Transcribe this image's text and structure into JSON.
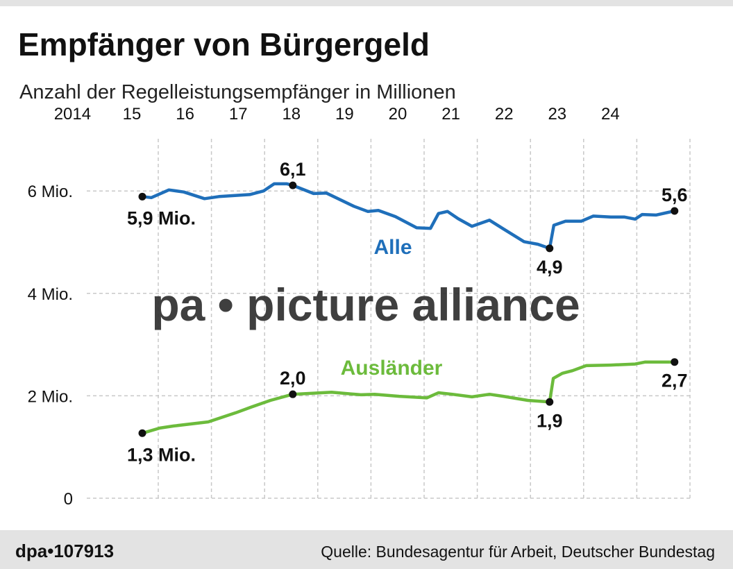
{
  "chart_data": {
    "type": "line",
    "title": "Empfänger von Bürgergeld",
    "subtitle": "Anzahl der Regelleistungsempfänger in Millionen",
    "xlabel": "",
    "ylabel": "",
    "x_tick_labels": [
      "2014",
      "15",
      "16",
      "17",
      "18",
      "19",
      "20",
      "21",
      "22",
      "23",
      "24"
    ],
    "y_tick_labels": [
      "0",
      "2 Mio.",
      "4 Mio.",
      "6 Mio."
    ],
    "y_ticks": [
      0,
      2,
      4,
      6
    ],
    "ylim": [
      0,
      6.6
    ],
    "xlim": [
      2014,
      2025
    ],
    "grid": true,
    "series": [
      {
        "name": "Alle",
        "color": "#1f6fba",
        "x": [
          2014.7,
          2014.87,
          2015.2,
          2015.48,
          2015.87,
          2016.14,
          2016.72,
          2016.98,
          2017.18,
          2017.42,
          2017.53,
          2017.92,
          2018.16,
          2018.68,
          2018.94,
          2019.14,
          2019.46,
          2019.86,
          2020.12,
          2020.27,
          2020.44,
          2020.64,
          2020.9,
          2021.23,
          2021.49,
          2021.88,
          2022.14,
          2022.36,
          2022.44,
          2022.66,
          2022.96,
          2023.18,
          2023.51,
          2023.77,
          2023.97,
          2024.1,
          2024.36,
          2024.71
        ],
        "values": [
          5.89,
          5.87,
          6.02,
          5.98,
          5.85,
          5.89,
          5.93,
          6.0,
          6.14,
          6.14,
          6.11,
          5.95,
          5.96,
          5.7,
          5.6,
          5.62,
          5.5,
          5.28,
          5.27,
          5.56,
          5.6,
          5.46,
          5.31,
          5.43,
          5.26,
          5.01,
          4.96,
          4.88,
          5.33,
          5.41,
          5.41,
          5.51,
          5.49,
          5.49,
          5.45,
          5.54,
          5.53,
          5.61
        ]
      },
      {
        "name": "Ausländer",
        "color": "#6cbb3c",
        "x": [
          2014.7,
          2015.03,
          2015.29,
          2015.94,
          2016.46,
          2016.75,
          2017.11,
          2017.53,
          2017.9,
          2018.26,
          2018.81,
          2019.07,
          2019.53,
          2020.05,
          2020.27,
          2020.53,
          2020.9,
          2021.23,
          2021.49,
          2021.95,
          2022.36,
          2022.43,
          2022.6,
          2022.79,
          2023.05,
          2023.51,
          2023.97,
          2024.16,
          2024.71
        ],
        "values": [
          1.27,
          1.37,
          1.41,
          1.49,
          1.67,
          1.78,
          1.91,
          2.03,
          2.05,
          2.07,
          2.02,
          2.03,
          1.99,
          1.96,
          2.06,
          2.03,
          1.98,
          2.03,
          1.99,
          1.91,
          1.88,
          2.34,
          2.44,
          2.49,
          2.59,
          2.6,
          2.62,
          2.66,
          2.66
        ]
      }
    ],
    "annotations": [
      {
        "text": "5,9 Mio.",
        "x": 2014.7,
        "y": 5.89,
        "pos": "below"
      },
      {
        "text": "6,1",
        "x": 2017.53,
        "y": 6.11,
        "pos": "above"
      },
      {
        "text": "4,9",
        "x": 2022.36,
        "y": 4.88,
        "pos": "below"
      },
      {
        "text": "5,6",
        "x": 2024.71,
        "y": 5.61,
        "pos": "above"
      },
      {
        "text": "1,3 Mio.",
        "x": 2014.7,
        "y": 1.27,
        "pos": "below"
      },
      {
        "text": "2,0",
        "x": 2017.53,
        "y": 2.03,
        "pos": "above"
      },
      {
        "text": "1,9",
        "x": 2022.36,
        "y": 1.88,
        "pos": "below"
      },
      {
        "text": "2,7",
        "x": 2024.71,
        "y": 2.66,
        "pos": "below"
      }
    ]
  },
  "watermark": "pa • picture alliance",
  "footer": {
    "id": "dpa•107913",
    "source": "Quelle: Bundesagentur für Arbeit, Deutscher Bundestag"
  }
}
